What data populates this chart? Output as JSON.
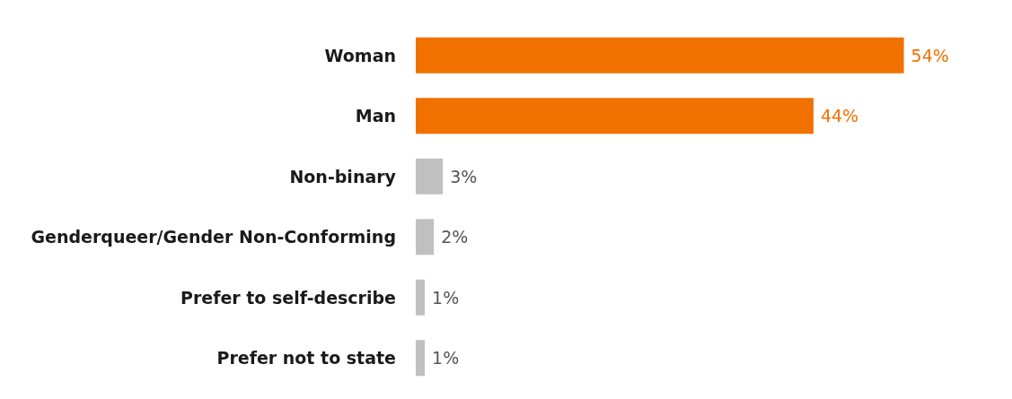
{
  "chart_data": {
    "type": "bar",
    "orientation": "horizontal",
    "categories": [
      "Woman",
      "Man",
      "Non-binary",
      "Genderqueer/Gender Non-Conforming",
      "Prefer to self-describe",
      "Prefer not to state"
    ],
    "values": [
      54,
      44,
      3,
      2,
      1,
      1
    ],
    "colors": [
      "#f07000",
      "#f07000",
      "#c0c0c0",
      "#c0c0c0",
      "#c0c0c0",
      "#c0c0c0"
    ],
    "value_labels": [
      "54%",
      "44%",
      "3%",
      "2%",
      "1%",
      "1%"
    ]
  }
}
